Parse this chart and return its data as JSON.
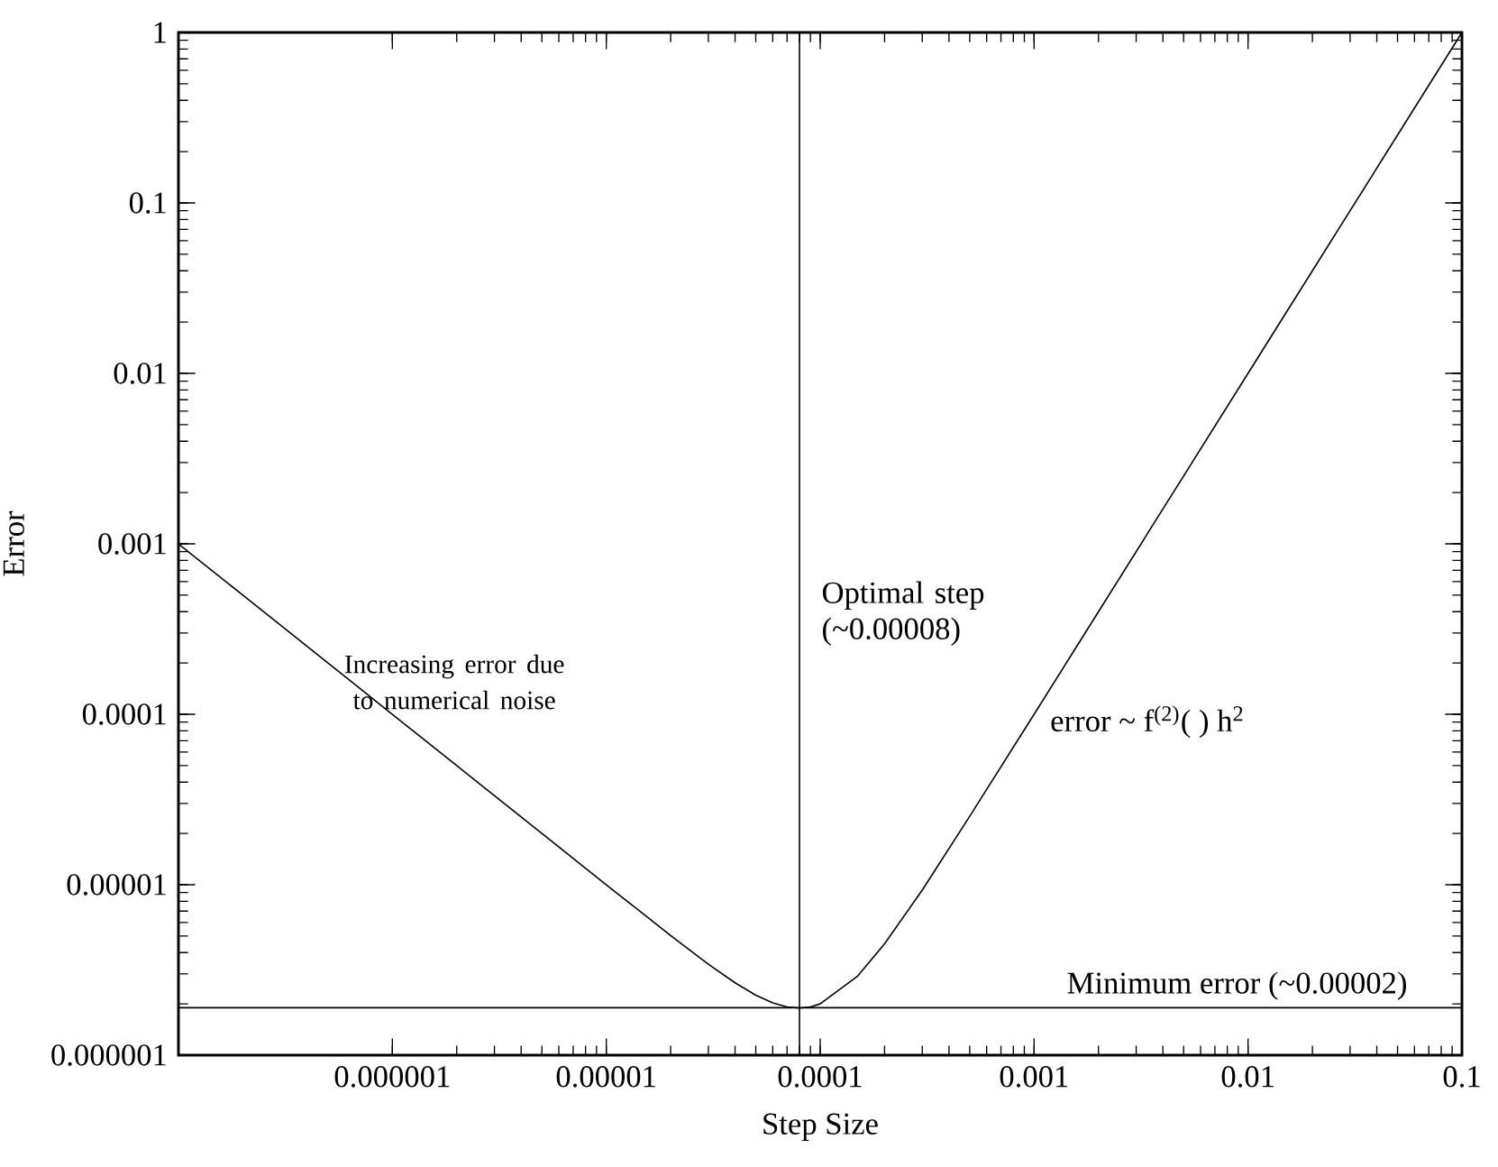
{
  "chart_data": {
    "type": "line",
    "xlabel": "Step Size",
    "ylabel": "Error",
    "log": "xy",
    "xlim": [
      1e-07,
      0.1
    ],
    "ylim": [
      1e-06,
      1
    ],
    "xticks": [
      {
        "value": 1e-06,
        "label": "0.000001"
      },
      {
        "value": 1e-05,
        "label": "0.00001"
      },
      {
        "value": 0.0001,
        "label": "0.0001"
      },
      {
        "value": 0.001,
        "label": "0.001"
      },
      {
        "value": 0.01,
        "label": "0.01"
      },
      {
        "value": 0.1,
        "label": "0.1"
      }
    ],
    "yticks": [
      {
        "value": 1e-06,
        "label": "0.000001"
      },
      {
        "value": 1e-05,
        "label": "0.00001"
      },
      {
        "value": 0.0001,
        "label": "0.0001"
      },
      {
        "value": 0.001,
        "label": "0.001"
      },
      {
        "value": 0.01,
        "label": "0.01"
      },
      {
        "value": 0.1,
        "label": "0.1"
      },
      {
        "value": 1,
        "label": "1"
      }
    ],
    "series": [
      {
        "color": "#000000",
        "x": [
          1e-07,
          2e-07,
          5e-07,
          1e-06,
          2e-06,
          5e-06,
          1e-05,
          2e-05,
          3e-05,
          4e-05,
          5e-05,
          6e-05,
          7e-05,
          8e-05,
          9e-05,
          0.0001,
          0.00015,
          0.0002,
          0.0003,
          0.0005,
          0.001,
          0.002,
          0.005,
          0.01,
          0.02,
          0.05,
          0.1
        ],
        "values": [
          0.001,
          0.0005,
          0.0002,
          0.0001,
          5e-05,
          2e-05,
          1e-05,
          5.04e-06,
          3.42e-06,
          2.66e-06,
          2.25e-06,
          2.03e-06,
          1.92e-06,
          1.89e-06,
          1.92e-06,
          2e-06,
          2.92e-06,
          4.5e-06,
          9.3e-06,
          2.52e-05,
          0.0001,
          0.0004,
          0.0025,
          0.01,
          0.04,
          0.25,
          1
        ]
      }
    ],
    "ref_lines": [
      {
        "axis": "x",
        "value": 8e-05,
        "label": "Optimal step (~0.00008)"
      },
      {
        "axis": "y",
        "value": 1.9e-06,
        "label": "Minimum error (~0.00002)"
      }
    ],
    "annotations": [
      "Increasing error due to numerical noise",
      "error ~ f$^{(2)}$( ) h$^{2}$"
    ]
  }
}
